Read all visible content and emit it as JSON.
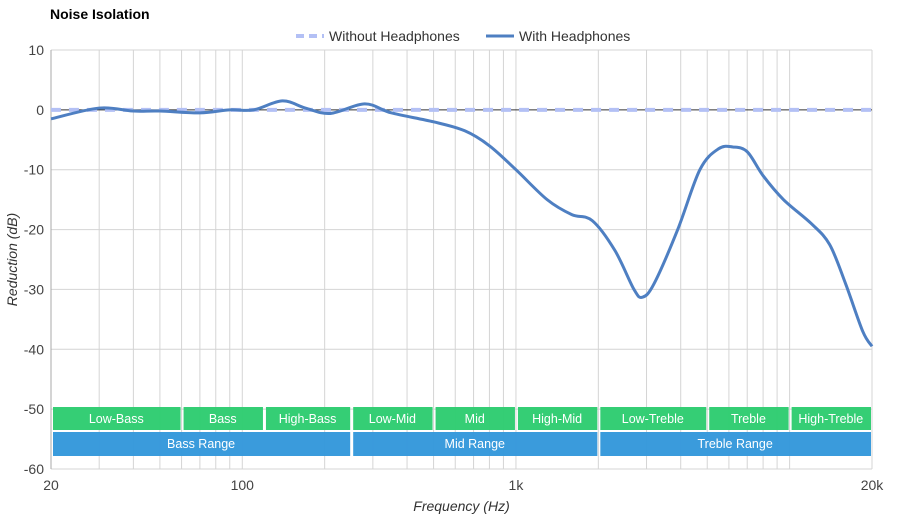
{
  "chart_data": {
    "type": "line",
    "title": "Noise Isolation",
    "xlabel": "Frequency (Hz)",
    "ylabel": "Reduction (dB)",
    "x_scale": "log",
    "xlim": [
      20,
      20000
    ],
    "ylim": [
      -60,
      10
    ],
    "grid": true,
    "legend_position": "top",
    "x_ticks": [
      {
        "value": 20,
        "label": "20"
      },
      {
        "value": 100,
        "label": "100"
      },
      {
        "value": 1000,
        "label": "1k"
      },
      {
        "value": 20000,
        "label": "20k"
      }
    ],
    "y_ticks": [
      10,
      0,
      -10,
      -20,
      -30,
      -40,
      -50,
      -60
    ],
    "series": [
      {
        "name": "Without Headphones",
        "color": "#b3c0f5",
        "style": "dashed",
        "x": [
          20,
          20000
        ],
        "values": [
          0,
          0
        ]
      },
      {
        "name": "With Headphones",
        "color": "#4e7fc2",
        "style": "solid",
        "x": [
          20,
          30,
          40,
          50,
          70,
          90,
          110,
          140,
          170,
          210,
          280,
          350,
          500,
          650,
          800,
          1000,
          1300,
          1600,
          1900,
          2300,
          2700,
          2900,
          3200,
          3900,
          4700,
          5500,
          6200,
          7000,
          8000,
          9500,
          12000,
          14000,
          16000,
          18500,
          20000
        ],
        "values": [
          -1.5,
          0.3,
          -0.2,
          -0.2,
          -0.5,
          0,
          0,
          1.5,
          0.3,
          -0.6,
          1.0,
          -0.5,
          -2,
          -3.5,
          -6,
          -10,
          -15,
          -17.5,
          -18.5,
          -23.5,
          -30,
          -31.3,
          -29,
          -20,
          -10,
          -6.5,
          -6.2,
          -7,
          -11,
          -15,
          -19,
          -22.5,
          -29,
          -37,
          -39.5
        ]
      }
    ],
    "bands": [
      {
        "label": "Low-Bass",
        "from": 20,
        "to": 60,
        "color": "#2ecc71"
      },
      {
        "label": "Bass",
        "from": 60,
        "to": 120,
        "color": "#2ecc71"
      },
      {
        "label": "High-Bass",
        "from": 120,
        "to": 250,
        "color": "#2ecc71"
      },
      {
        "label": "Low-Mid",
        "from": 250,
        "to": 500,
        "color": "#2ecc71"
      },
      {
        "label": "Mid",
        "from": 500,
        "to": 1000,
        "color": "#2ecc71"
      },
      {
        "label": "High-Mid",
        "from": 1000,
        "to": 2000,
        "color": "#2ecc71"
      },
      {
        "label": "Low-Treble",
        "from": 2000,
        "to": 5000,
        "color": "#2ecc71"
      },
      {
        "label": "Treble",
        "from": 5000,
        "to": 10000,
        "color": "#2ecc71"
      },
      {
        "label": "High-Treble",
        "from": 10000,
        "to": 20000,
        "color": "#2ecc71"
      }
    ],
    "ranges": [
      {
        "label": "Bass Range",
        "from": 20,
        "to": 250,
        "color": "#3498db"
      },
      {
        "label": "Mid Range",
        "from": 250,
        "to": 2000,
        "color": "#3498db"
      },
      {
        "label": "Treble Range",
        "from": 2000,
        "to": 20000,
        "color": "#3498db"
      }
    ]
  }
}
